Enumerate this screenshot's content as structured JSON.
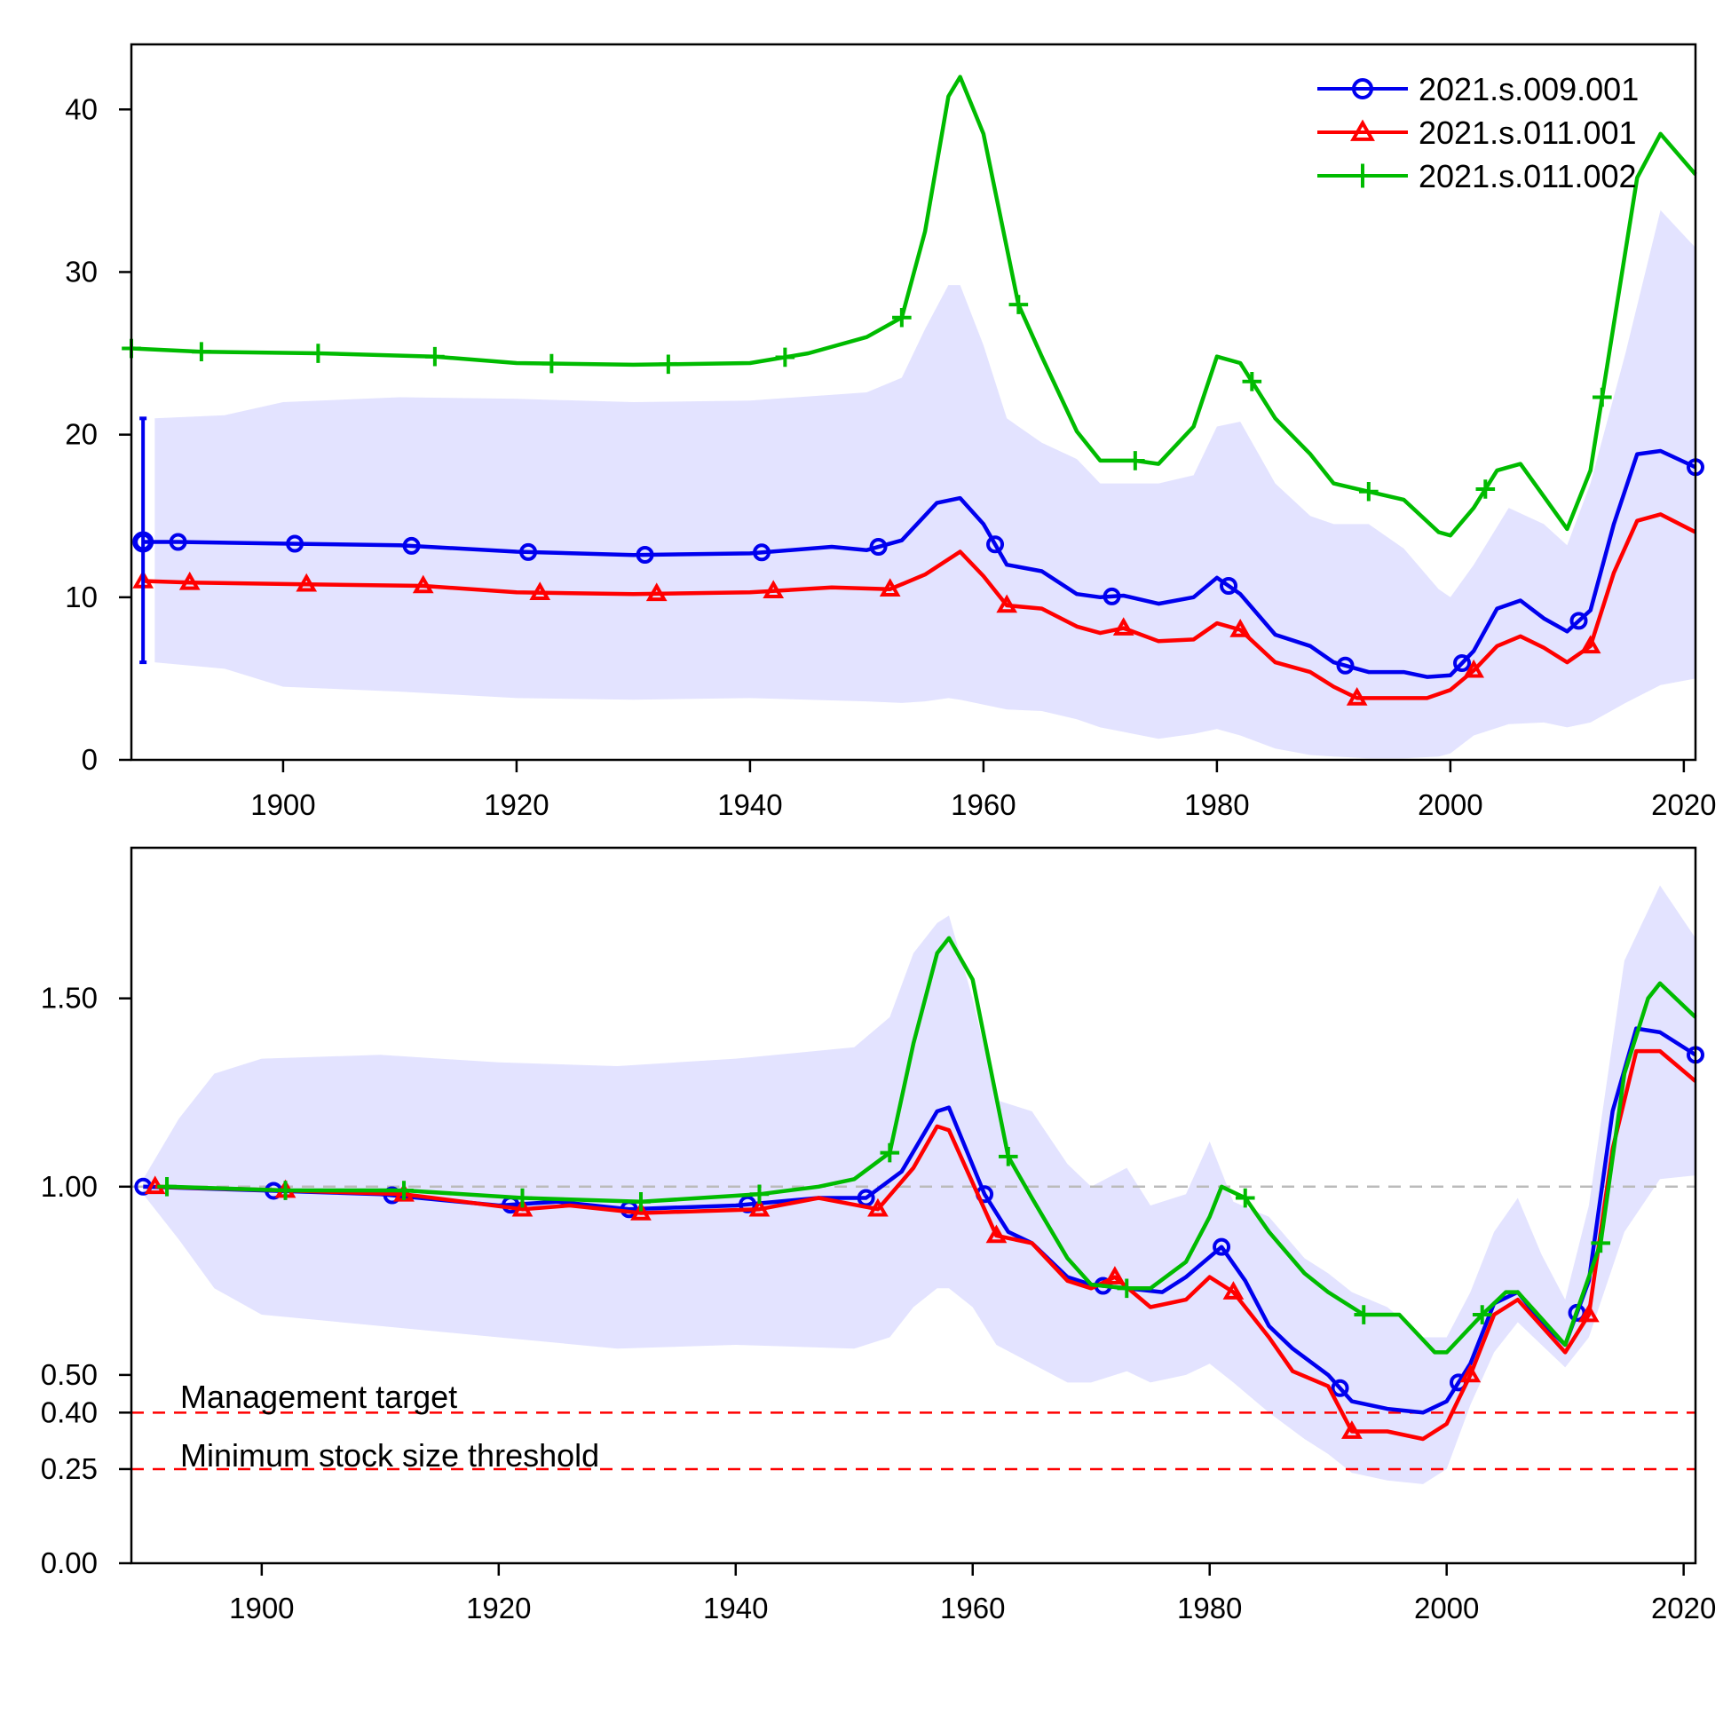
{
  "colors": {
    "band": "#e3e3ff",
    "blue": "#0000ee",
    "red": "#ff0000",
    "green": "#00bb00",
    "reference": "#bbbbbb",
    "threshold": "#ff0000"
  },
  "legend": {
    "placement": "top-right",
    "entries": [
      {
        "label": "2021.s.009.001",
        "color": "#0000ee",
        "marker": "circle"
      },
      {
        "label": "2021.s.011.001",
        "color": "#ff0000",
        "marker": "triangle"
      },
      {
        "label": "2021.s.011.002",
        "color": "#00bb00",
        "marker": "plus"
      }
    ]
  },
  "chart_data": [
    {
      "type": "line",
      "title": "",
      "xlabel": "",
      "ylabel": "",
      "xlim": [
        1887,
        2021
      ],
      "ylim": [
        0,
        44
      ],
      "x_ticks": [
        1900,
        1920,
        1940,
        1960,
        1980,
        2000,
        2020
      ],
      "y_ticks": [
        0,
        10,
        20,
        30,
        40
      ],
      "y_tick_labels": [
        "0",
        "10",
        "20",
        "30",
        "40"
      ],
      "grid": false,
      "uncertainty_band": {
        "x": [
          1889,
          1895,
          1900,
          1910,
          1920,
          1930,
          1940,
          1950,
          1953,
          1955,
          1957,
          1958,
          1960,
          1962,
          1965,
          1968,
          1970,
          1975,
          1978,
          1980,
          1982,
          1985,
          1988,
          1990,
          1993,
          1996,
          1999,
          2000,
          2002,
          2005,
          2008,
          2010,
          2012,
          2015,
          2018,
          2021
        ],
        "lower": [
          6,
          5.6,
          4.5,
          4.2,
          3.8,
          3.7,
          3.8,
          3.6,
          3.5,
          3.6,
          3.8,
          3.7,
          3.4,
          3.1,
          3.0,
          2.5,
          2.0,
          1.3,
          1.6,
          1.9,
          1.5,
          0.7,
          0.3,
          0.2,
          0.1,
          0.1,
          0.2,
          0.4,
          1.5,
          2.2,
          2.3,
          2.0,
          2.3,
          3.5,
          4.6,
          5.0
        ],
        "upper": [
          21,
          21.2,
          22.0,
          22.3,
          22.2,
          22.0,
          22.1,
          22.6,
          23.5,
          26.5,
          29.2,
          29.2,
          25.5,
          21.0,
          19.5,
          18.5,
          17.0,
          17.0,
          17.5,
          20.5,
          20.8,
          17.0,
          15.0,
          14.5,
          14.5,
          13.0,
          10.5,
          10.0,
          12.0,
          15.5,
          14.5,
          13.2,
          17.0,
          25.0,
          33.8,
          31.5
        ]
      },
      "series": [
        {
          "name": "2021.s.009.001",
          "color": "#0000ee",
          "marker": "circle",
          "x": [
            1888,
            1891,
            1900,
            1910,
            1920,
            1930,
            1940,
            1947,
            1950,
            1953,
            1956,
            1958,
            1960,
            1962,
            1965,
            1968,
            1970,
            1972,
            1975,
            1978,
            1980,
            1982,
            1985,
            1988,
            1990,
            1993,
            1996,
            1998,
            2000,
            2002,
            2004,
            2006,
            2008,
            2010,
            2012,
            2014,
            2016,
            2018,
            2021
          ],
          "y": [
            13.4,
            13.4,
            13.3,
            13.2,
            12.8,
            12.6,
            12.7,
            13.1,
            12.9,
            13.5,
            15.8,
            16.1,
            14.5,
            12.0,
            11.6,
            10.2,
            10.0,
            10.1,
            9.6,
            10.0,
            11.2,
            10.2,
            7.7,
            7.0,
            6.0,
            5.4,
            5.4,
            5.1,
            5.2,
            6.7,
            9.3,
            9.8,
            8.7,
            7.9,
            9.2,
            14.5,
            18.8,
            19.0,
            18.0
          ],
          "marker_x": [
            1888,
            1891,
            1901,
            1911,
            1921,
            1931,
            1941,
            1951,
            1961,
            1971,
            1981,
            1991,
            2001,
            2011,
            2021
          ]
        },
        {
          "name": "2021.s.011.001",
          "color": "#ff0000",
          "marker": "triangle",
          "x": [
            1888,
            1892,
            1902,
            1912,
            1920,
            1930,
            1940,
            1947,
            1952,
            1955,
            1958,
            1960,
            1962,
            1965,
            1968,
            1970,
            1972,
            1975,
            1978,
            1980,
            1982,
            1985,
            1988,
            1990,
            1992,
            1995,
            1998,
            2000,
            2002,
            2004,
            2006,
            2008,
            2010,
            2012,
            2014,
            2016,
            2018,
            2021
          ],
          "y": [
            11.0,
            10.9,
            10.8,
            10.7,
            10.3,
            10.2,
            10.3,
            10.6,
            10.5,
            11.4,
            12.8,
            11.3,
            9.5,
            9.3,
            8.2,
            7.8,
            8.1,
            7.3,
            7.4,
            8.4,
            8.0,
            6.0,
            5.4,
            4.5,
            3.8,
            3.8,
            3.8,
            4.3,
            5.5,
            7.0,
            7.6,
            6.9,
            6.0,
            7.0,
            11.5,
            14.7,
            15.1,
            14.0
          ],
          "marker_x": [
            1888,
            1892,
            1902,
            1912,
            1922,
            1932,
            1942,
            1952,
            1962,
            1972,
            1982,
            1992,
            2002,
            2012
          ]
        },
        {
          "name": "2021.s.011.002",
          "color": "#00bb00",
          "marker": "plus",
          "x": [
            1887,
            1893,
            1903,
            1913,
            1920,
            1930,
            1940,
            1945,
            1950,
            1953,
            1955,
            1957,
            1958,
            1960,
            1963,
            1965,
            1968,
            1970,
            1973,
            1975,
            1978,
            1980,
            1982,
            1985,
            1988,
            1990,
            1993,
            1996,
            1999,
            2000,
            2002,
            2004,
            2006,
            2008,
            2010,
            2012,
            2014,
            2016,
            2018,
            2021
          ],
          "y": [
            25.3,
            25.1,
            25.0,
            24.8,
            24.4,
            24.3,
            24.4,
            25.0,
            26.0,
            27.2,
            32.5,
            40.8,
            42.0,
            38.5,
            28.0,
            24.8,
            20.2,
            18.4,
            18.4,
            18.2,
            20.5,
            24.8,
            24.4,
            21.0,
            18.8,
            17.0,
            16.5,
            16.0,
            14.0,
            13.8,
            15.5,
            17.8,
            18.2,
            16.2,
            14.2,
            17.8,
            26.8,
            35.8,
            38.5,
            36.0
          ],
          "marker_x": [
            1887,
            1893,
            1903,
            1913,
            1923,
            1933,
            1943,
            1953,
            1963,
            1973,
            1983,
            1993,
            2003,
            2013
          ]
        }
      ],
      "error_bar": {
        "x": 1888,
        "low": 6.0,
        "high": 21.0,
        "center": 13.4,
        "color": "#0000ee"
      }
    },
    {
      "type": "line",
      "title": "",
      "xlabel": "",
      "ylabel": "",
      "xlim": [
        1889,
        2021
      ],
      "ylim": [
        0,
        1.9
      ],
      "x_ticks": [
        1900,
        1920,
        1940,
        1960,
        1980,
        2000,
        2020
      ],
      "y_ticks": [
        0.0,
        0.25,
        0.4,
        0.5,
        1.0,
        1.5
      ],
      "y_tick_labels": [
        "0.00",
        "0.25",
        "0.40",
        "0.50",
        "1.00",
        "1.50"
      ],
      "grid": false,
      "reference_line": {
        "y": 1.0,
        "color": "#bbbbbb",
        "style": "dashed"
      },
      "threshold_lines": [
        {
          "y": 0.4,
          "label": "Management target",
          "color": "#ff0000",
          "style": "dashed"
        },
        {
          "y": 0.25,
          "label": "Minimum stock size threshold",
          "color": "#ff0000",
          "style": "dashed"
        }
      ],
      "uncertainty_band": {
        "x": [
          1890,
          1893,
          1896,
          1900,
          1910,
          1920,
          1930,
          1940,
          1950,
          1953,
          1955,
          1957,
          1958,
          1960,
          1962,
          1965,
          1968,
          1970,
          1973,
          1975,
          1978,
          1980,
          1982,
          1985,
          1988,
          1990,
          1992,
          1995,
          1998,
          2000,
          2002,
          2004,
          2006,
          2008,
          2010,
          2012,
          2015,
          2018,
          2021
        ],
        "lower": [
          0.98,
          0.86,
          0.73,
          0.66,
          0.63,
          0.6,
          0.57,
          0.58,
          0.57,
          0.6,
          0.68,
          0.73,
          0.73,
          0.68,
          0.58,
          0.53,
          0.48,
          0.48,
          0.51,
          0.48,
          0.5,
          0.53,
          0.48,
          0.4,
          0.33,
          0.29,
          0.24,
          0.22,
          0.21,
          0.25,
          0.42,
          0.56,
          0.64,
          0.58,
          0.52,
          0.6,
          0.88,
          1.02,
          1.03
        ],
        "upper": [
          1.02,
          1.18,
          1.3,
          1.34,
          1.35,
          1.33,
          1.32,
          1.34,
          1.37,
          1.45,
          1.62,
          1.7,
          1.72,
          1.5,
          1.23,
          1.2,
          1.06,
          1.0,
          1.05,
          0.95,
          0.98,
          1.12,
          0.96,
          0.92,
          0.81,
          0.77,
          0.72,
          0.68,
          0.6,
          0.6,
          0.72,
          0.88,
          0.97,
          0.82,
          0.7,
          0.95,
          1.6,
          1.8,
          1.66
        ]
      },
      "series": [
        {
          "name": "2021.s.009.001",
          "color": "#0000ee",
          "marker": "circle",
          "x": [
            1890,
            1900,
            1910,
            1920,
            1925,
            1931,
            1940,
            1947,
            1951,
            1954,
            1957,
            1958,
            1961,
            1963,
            1965,
            1968,
            1970,
            1973,
            1976,
            1978,
            1981,
            1983,
            1985,
            1987,
            1990,
            1992,
            1995,
            1998,
            2000,
            2002,
            2004,
            2006,
            2008,
            2010,
            2012,
            2014,
            2016,
            2018,
            2021
          ],
          "y": [
            1.0,
            0.99,
            0.98,
            0.95,
            0.96,
            0.94,
            0.95,
            0.97,
            0.97,
            1.04,
            1.2,
            1.21,
            0.98,
            0.88,
            0.85,
            0.76,
            0.74,
            0.73,
            0.72,
            0.76,
            0.84,
            0.75,
            0.63,
            0.57,
            0.5,
            0.43,
            0.41,
            0.4,
            0.43,
            0.53,
            0.69,
            0.72,
            0.64,
            0.58,
            0.75,
            1.2,
            1.42,
            1.41,
            1.35
          ],
          "marker_x": [
            1890,
            1901,
            1911,
            1921,
            1931,
            1941,
            1951,
            1961,
            1971,
            1981,
            1991,
            2001,
            2011,
            2021
          ]
        },
        {
          "name": "2021.s.011.001",
          "color": "#ff0000",
          "marker": "triangle",
          "x": [
            1891,
            1902,
            1912,
            1922,
            1926,
            1932,
            1942,
            1947,
            1952,
            1955,
            1957,
            1958,
            1962,
            1965,
            1968,
            1970,
            1972,
            1975,
            1978,
            1980,
            1982,
            1985,
            1987,
            1990,
            1992,
            1995,
            1998,
            2000,
            2002,
            2004,
            2006,
            2008,
            2010,
            2012,
            2014,
            2016,
            2018,
            2021
          ],
          "y": [
            1.0,
            0.99,
            0.98,
            0.94,
            0.95,
            0.93,
            0.94,
            0.97,
            0.94,
            1.05,
            1.16,
            1.15,
            0.87,
            0.85,
            0.75,
            0.73,
            0.76,
            0.68,
            0.7,
            0.76,
            0.72,
            0.6,
            0.51,
            0.47,
            0.35,
            0.35,
            0.33,
            0.37,
            0.5,
            0.66,
            0.7,
            0.63,
            0.56,
            0.66,
            1.1,
            1.36,
            1.36,
            1.28
          ],
          "marker_x": [
            1891,
            1902,
            1912,
            1922,
            1932,
            1942,
            1952,
            1962,
            1972,
            1982,
            1992,
            2002,
            2012
          ]
        },
        {
          "name": "2021.s.011.002",
          "color": "#00bb00",
          "marker": "plus",
          "x": [
            1892,
            1902,
            1912,
            1922,
            1932,
            1942,
            1947,
            1950,
            1953,
            1955,
            1957,
            1958,
            1960,
            1963,
            1965,
            1968,
            1970,
            1973,
            1975,
            1978,
            1980,
            1981,
            1983,
            1985,
            1988,
            1990,
            1993,
            1996,
            1999,
            2000,
            2003,
            2005,
            2006,
            2008,
            2010,
            2013,
            2015,
            2017,
            2018,
            2021
          ],
          "y": [
            1.0,
            0.99,
            0.99,
            0.97,
            0.96,
            0.98,
            1.0,
            1.02,
            1.09,
            1.38,
            1.62,
            1.66,
            1.55,
            1.08,
            0.97,
            0.81,
            0.74,
            0.73,
            0.73,
            0.8,
            0.92,
            1.0,
            0.97,
            0.88,
            0.77,
            0.72,
            0.66,
            0.66,
            0.56,
            0.56,
            0.66,
            0.72,
            0.72,
            0.65,
            0.58,
            0.85,
            1.3,
            1.5,
            1.54,
            1.45
          ],
          "marker_x": [
            1892,
            1902,
            1912,
            1922,
            1932,
            1942,
            1953,
            1963,
            1973,
            1983,
            1993,
            2003,
            2013
          ]
        }
      ]
    }
  ]
}
